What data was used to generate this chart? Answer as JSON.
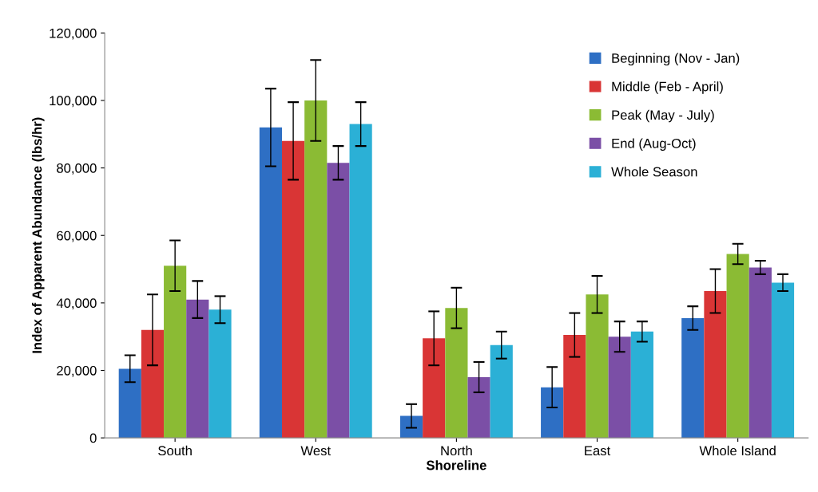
{
  "chart_data": {
    "type": "bar",
    "xlabel": "Shoreline",
    "ylabel": "Index of Apparent Abundance (lbs/hr)",
    "categories": [
      "South",
      "West",
      "North",
      "East",
      "Whole Island"
    ],
    "series": [
      {
        "name": "Beginning (Nov - Jan)",
        "color": "#2e6fc4",
        "values": [
          20500,
          92000,
          6500,
          15000,
          35500
        ],
        "errors": [
          4000,
          11500,
          3500,
          6000,
          3500
        ]
      },
      {
        "name": "Middle (Feb - April)",
        "color": "#d93535",
        "values": [
          32000,
          88000,
          29500,
          30500,
          43500
        ],
        "errors": [
          10500,
          11500,
          8000,
          6500,
          6500
        ]
      },
      {
        "name": "Peak (May - July)",
        "color": "#8bbb34",
        "values": [
          51000,
          100000,
          38500,
          42500,
          54500
        ],
        "errors": [
          7500,
          12000,
          6000,
          5500,
          3000
        ]
      },
      {
        "name": "End (Aug-Oct)",
        "color": "#7b4fa6",
        "values": [
          41000,
          81500,
          18000,
          30000,
          50500
        ],
        "errors": [
          5500,
          5000,
          4500,
          4500,
          2000
        ]
      },
      {
        "name": "Whole Season",
        "color": "#2bb0d6",
        "values": [
          38000,
          93000,
          27500,
          31500,
          46000
        ],
        "errors": [
          4000,
          6500,
          4000,
          3000,
          2500
        ]
      }
    ],
    "ylim": [
      0,
      120000
    ],
    "yticks": [
      {
        "value": 0,
        "label": "0"
      },
      {
        "value": 20000,
        "label": "20,000"
      },
      {
        "value": 40000,
        "label": "40,000"
      },
      {
        "value": 60000,
        "label": "60,000"
      },
      {
        "value": 80000,
        "label": "80,000"
      },
      {
        "value": 100000,
        "label": "100,000"
      },
      {
        "value": 120000,
        "label": "120,000"
      }
    ],
    "grid": false,
    "legend": "top right"
  }
}
